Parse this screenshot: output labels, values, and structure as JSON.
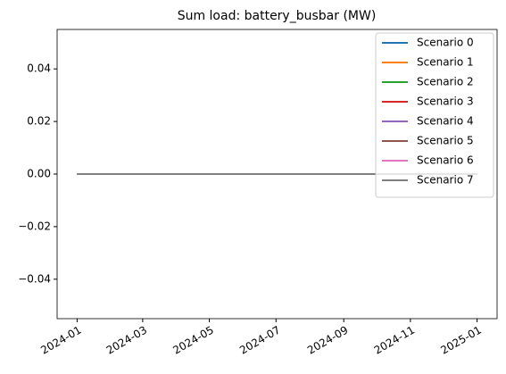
{
  "chart_data": {
    "type": "line",
    "title": "Sum load: battery_busbar (MW)",
    "x": [
      "2024-01",
      "2024-02",
      "2024-03",
      "2024-04",
      "2024-05",
      "2024-06",
      "2024-07",
      "2024-08",
      "2024-09",
      "2024-10",
      "2024-11",
      "2024-12",
      "2025-01"
    ],
    "series": [
      {
        "name": "Scenario 0",
        "color": "#1f77b4",
        "values": [
          0,
          0,
          0,
          0,
          0,
          0,
          0,
          0,
          0,
          0,
          0,
          0,
          0
        ]
      },
      {
        "name": "Scenario 1",
        "color": "#ff7f0e",
        "values": [
          0,
          0,
          0,
          0,
          0,
          0,
          0,
          0,
          0,
          0,
          0,
          0,
          0
        ]
      },
      {
        "name": "Scenario 2",
        "color": "#2ca02c",
        "values": [
          0,
          0,
          0,
          0,
          0,
          0,
          0,
          0,
          0,
          0,
          0,
          0,
          0
        ]
      },
      {
        "name": "Scenario 3",
        "color": "#d62728",
        "values": [
          0,
          0,
          0,
          0,
          0,
          0,
          0,
          0,
          0,
          0,
          0,
          0,
          0
        ]
      },
      {
        "name": "Scenario 4",
        "color": "#9467bd",
        "values": [
          0,
          0,
          0,
          0,
          0,
          0,
          0,
          0,
          0,
          0,
          0,
          0,
          0
        ]
      },
      {
        "name": "Scenario 5",
        "color": "#8c564b",
        "values": [
          0,
          0,
          0,
          0,
          0,
          0,
          0,
          0,
          0,
          0,
          0,
          0,
          0
        ]
      },
      {
        "name": "Scenario 6",
        "color": "#e377c2",
        "values": [
          0,
          0,
          0,
          0,
          0,
          0,
          0,
          0,
          0,
          0,
          0,
          0,
          0
        ]
      },
      {
        "name": "Scenario 7",
        "color": "#7f7f7f",
        "values": [
          0,
          0,
          0,
          0,
          0,
          0,
          0,
          0,
          0,
          0,
          0,
          0,
          0
        ]
      }
    ],
    "ylim": [
      -0.055,
      0.055
    ],
    "yticks": [
      {
        "value": -0.04,
        "label": "−0.04"
      },
      {
        "value": -0.02,
        "label": "−0.02"
      },
      {
        "value": 0,
        "label": "0.00"
      },
      0.02,
      0.04
    ],
    "xticks": [
      "2024-01",
      "2024-03",
      "2024-05",
      "2024-07",
      "2024-09",
      "2024-11",
      "2025-01"
    ],
    "legend": "upper right",
    "grid": false
  }
}
